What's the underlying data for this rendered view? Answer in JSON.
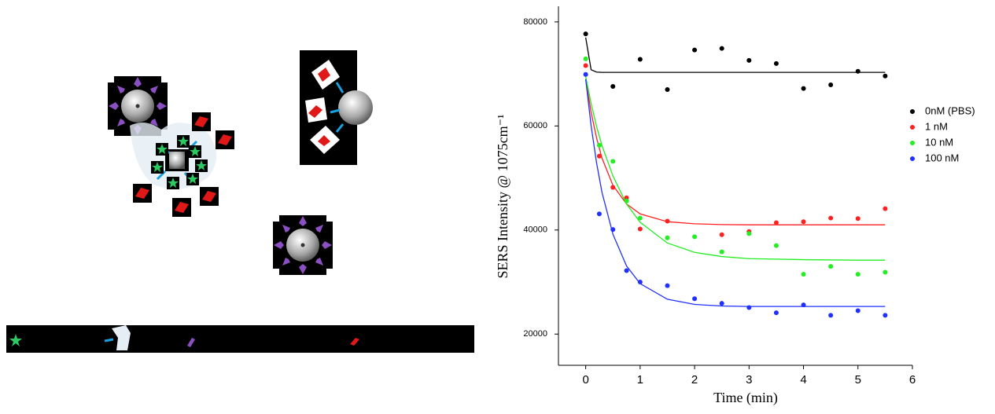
{
  "chart_data": {
    "type": "scatter",
    "xlabel": "Time (min)",
    "ylabel": "SERS Intensity @ 1075cm⁻¹",
    "xlim": [
      -0.5,
      6
    ],
    "ylim": [
      14000,
      83000
    ],
    "xticks": [
      0,
      1,
      2,
      3,
      4,
      5,
      6
    ],
    "yticks": [
      20000,
      40000,
      60000,
      80000
    ],
    "fit_x": [
      0,
      0.1,
      0.2,
      0.3,
      0.5,
      0.75,
      1,
      1.5,
      2,
      2.5,
      3,
      4,
      5,
      5.5
    ],
    "series": [
      {
        "name": "0nM (PBS)",
        "color": "#000000",
        "x": [
          0,
          0.5,
          1,
          1.5,
          2,
          2.5,
          3,
          3.5,
          4,
          4.5,
          5,
          5.5
        ],
        "values": [
          77700,
          67600,
          72800,
          67000,
          74600,
          74900,
          72600,
          72000,
          67200,
          67900,
          70500,
          69600
        ],
        "fit": [
          77000,
          70800,
          70350,
          70300,
          70300,
          70300,
          70300,
          70300,
          70300,
          70300,
          70300,
          70300,
          70300,
          70300
        ]
      },
      {
        "name": "1 nM",
        "color": "#ff2020",
        "x": [
          0,
          0.25,
          0.5,
          0.75,
          1,
          1.5,
          2.5,
          3,
          3.5,
          4,
          4.5,
          5,
          5.5
        ],
        "values": [
          71600,
          54200,
          48200,
          46200,
          40200,
          41700,
          39100,
          39700,
          41400,
          41600,
          42300,
          42200,
          44100
        ],
        "fit": [
          69000,
          62600,
          57700,
          53800,
          48600,
          45000,
          43100,
          41600,
          41200,
          41050,
          41000,
          41000,
          41000,
          41000
        ]
      },
      {
        "name": "10 nM",
        "color": "#22ee22",
        "x": [
          0,
          0.25,
          0.5,
          0.75,
          1,
          1.5,
          2,
          2.5,
          3,
          3.5,
          4,
          4.5,
          5,
          5.5
        ],
        "values": [
          72900,
          56300,
          53200,
          45600,
          42300,
          38500,
          38700,
          35800,
          39300,
          37000,
          31500,
          33000,
          31500,
          31900
        ],
        "fit": [
          69500,
          64300,
          59900,
          56200,
          50400,
          45000,
          41500,
          37500,
          35700,
          34900,
          34500,
          34300,
          34200,
          34200
        ]
      },
      {
        "name": "100 nM",
        "color": "#2030ff",
        "x": [
          0,
          0.25,
          0.5,
          0.75,
          1,
          1.5,
          2,
          2.5,
          3,
          3.5,
          4,
          4.5,
          5,
          5.5
        ],
        "values": [
          69900,
          43100,
          40100,
          32200,
          30000,
          29300,
          26800,
          25900,
          25100,
          24100,
          25600,
          23600,
          24500,
          23600
        ],
        "fit": [
          69000,
          60000,
          52900,
          47200,
          39200,
          33100,
          29700,
          26700,
          25700,
          25400,
          25300,
          25300,
          25300,
          25300
        ]
      }
    ]
  }
}
